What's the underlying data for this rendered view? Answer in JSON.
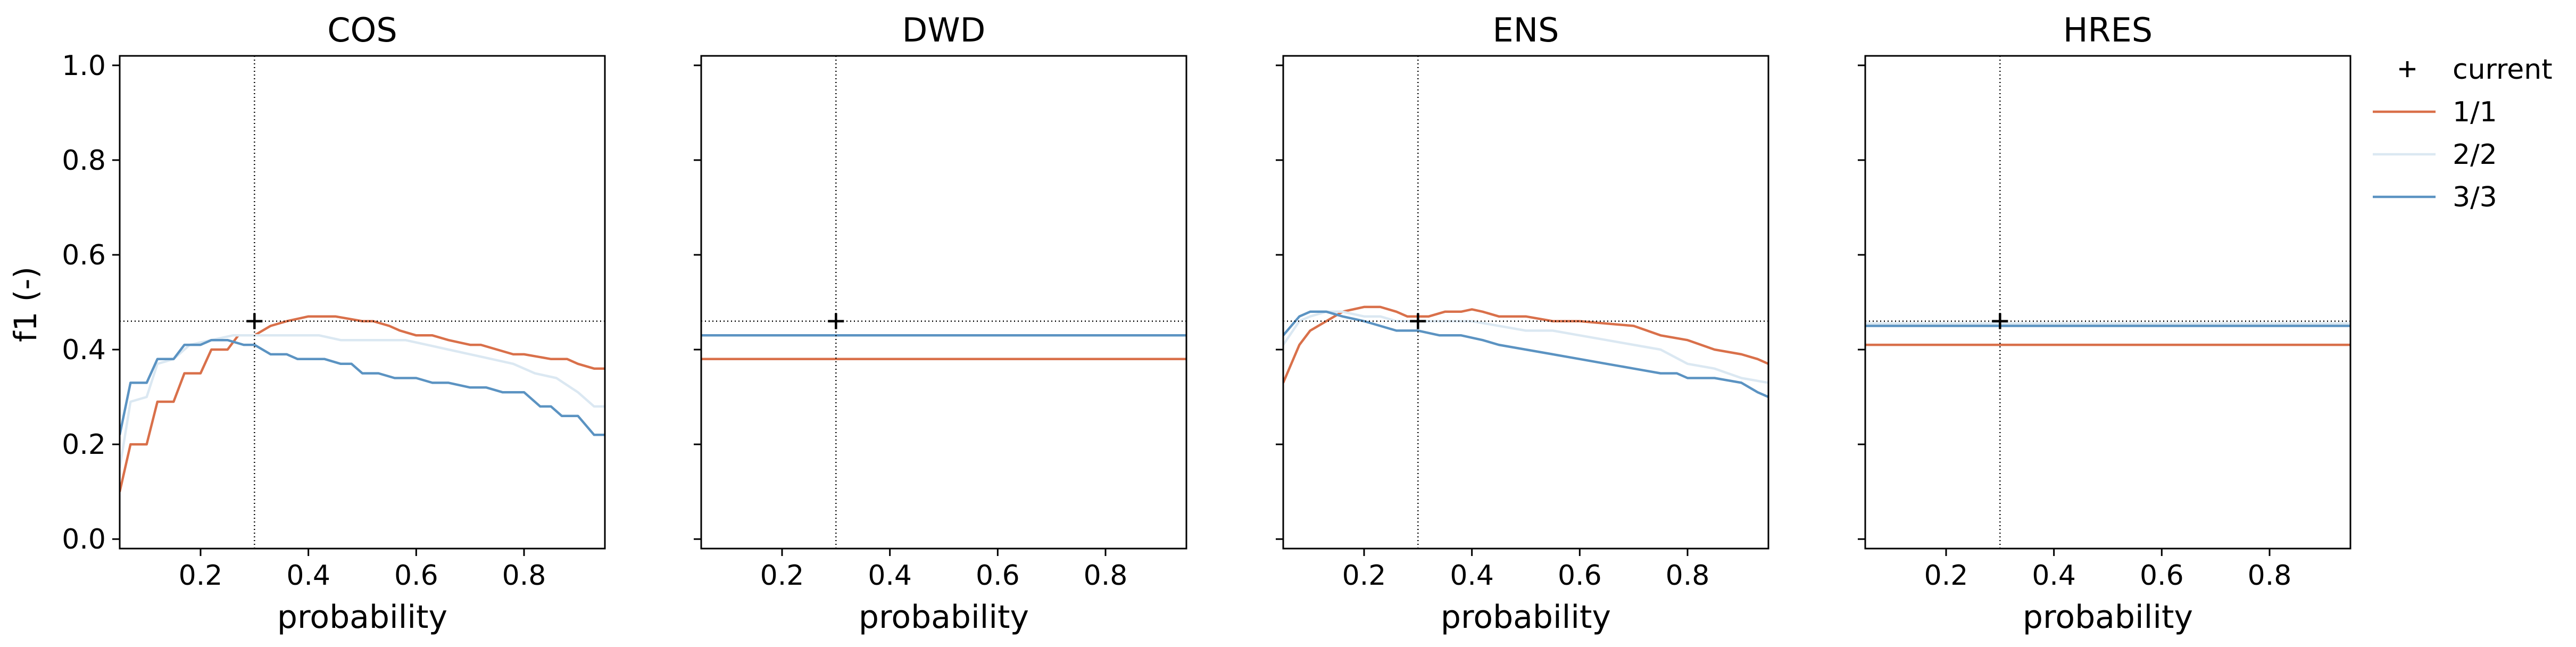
{
  "figure": {
    "ylabel": "f1 (-)",
    "xlabel": "probability"
  },
  "legend": {
    "placement": "right",
    "items": [
      {
        "label": "current",
        "marker": "plus",
        "color": "#000000"
      },
      {
        "label": "1/1",
        "color": "#d9704a"
      },
      {
        "label": "2/2",
        "color": "#dbe8f2"
      },
      {
        "label": "3/3",
        "color": "#5b93c2"
      }
    ]
  },
  "chart_data": [
    {
      "type": "line",
      "title": "COS",
      "xlabel": "probability",
      "ylabel": "f1 (-)",
      "xlim": [
        0.05,
        0.95
      ],
      "ylim": [
        -0.02,
        1.02
      ],
      "xticks": [
        "0.2",
        "0.4",
        "0.6",
        "0.8"
      ],
      "yticks": [
        "0.0",
        "0.2",
        "0.4",
        "0.6",
        "0.8",
        "1.0"
      ],
      "threshold_x": 0.3,
      "current": {
        "x": 0.3,
        "y": 0.46
      },
      "series": [
        {
          "name": "1/1",
          "color": "#d9704a",
          "x": [
            0.05,
            0.07,
            0.1,
            0.12,
            0.15,
            0.17,
            0.2,
            0.22,
            0.25,
            0.27,
            0.3,
            0.33,
            0.36,
            0.38,
            0.4,
            0.45,
            0.5,
            0.52,
            0.55,
            0.57,
            0.6,
            0.63,
            0.66,
            0.7,
            0.72,
            0.75,
            0.78,
            0.8,
            0.85,
            0.88,
            0.9,
            0.93,
            0.95
          ],
          "y": [
            0.1,
            0.2,
            0.2,
            0.29,
            0.29,
            0.35,
            0.35,
            0.4,
            0.4,
            0.43,
            0.43,
            0.45,
            0.46,
            0.465,
            0.47,
            0.47,
            0.46,
            0.46,
            0.45,
            0.44,
            0.43,
            0.43,
            0.42,
            0.41,
            0.41,
            0.4,
            0.39,
            0.39,
            0.38,
            0.38,
            0.37,
            0.36,
            0.36
          ]
        },
        {
          "name": "2/2",
          "color": "#dbe8f2",
          "x": [
            0.05,
            0.07,
            0.1,
            0.12,
            0.15,
            0.18,
            0.22,
            0.26,
            0.3,
            0.34,
            0.38,
            0.42,
            0.46,
            0.5,
            0.54,
            0.58,
            0.62,
            0.66,
            0.7,
            0.74,
            0.78,
            0.82,
            0.86,
            0.9,
            0.93,
            0.95
          ],
          "y": [
            0.15,
            0.29,
            0.3,
            0.37,
            0.38,
            0.41,
            0.42,
            0.43,
            0.43,
            0.43,
            0.43,
            0.43,
            0.42,
            0.42,
            0.42,
            0.42,
            0.41,
            0.4,
            0.39,
            0.38,
            0.37,
            0.35,
            0.34,
            0.31,
            0.28,
            0.28
          ]
        },
        {
          "name": "3/3",
          "color": "#5b93c2",
          "x": [
            0.05,
            0.07,
            0.1,
            0.12,
            0.15,
            0.17,
            0.2,
            0.22,
            0.25,
            0.28,
            0.3,
            0.33,
            0.36,
            0.38,
            0.4,
            0.43,
            0.46,
            0.48,
            0.5,
            0.53,
            0.56,
            0.6,
            0.63,
            0.66,
            0.7,
            0.73,
            0.76,
            0.8,
            0.83,
            0.85,
            0.87,
            0.9,
            0.93,
            0.95
          ],
          "y": [
            0.22,
            0.33,
            0.33,
            0.38,
            0.38,
            0.41,
            0.41,
            0.42,
            0.42,
            0.41,
            0.41,
            0.39,
            0.39,
            0.38,
            0.38,
            0.38,
            0.37,
            0.37,
            0.35,
            0.35,
            0.34,
            0.34,
            0.33,
            0.33,
            0.32,
            0.32,
            0.31,
            0.31,
            0.28,
            0.28,
            0.26,
            0.26,
            0.22,
            0.22
          ]
        }
      ]
    },
    {
      "type": "line",
      "title": "DWD",
      "xlabel": "probability",
      "xlim": [
        0.05,
        0.95
      ],
      "ylim": [
        -0.02,
        1.02
      ],
      "xticks": [
        "0.2",
        "0.4",
        "0.6",
        "0.8"
      ],
      "threshold_x": 0.3,
      "current": {
        "x": 0.3,
        "y": 0.46
      },
      "series": [
        {
          "name": "1/1",
          "color": "#d9704a",
          "x": [
            0.05,
            0.95
          ],
          "y": [
            0.38,
            0.38
          ]
        },
        {
          "name": "2/2",
          "color": "#dbe8f2",
          "x": [
            0.05,
            0.95
          ],
          "y": [
            0.43,
            0.43
          ]
        },
        {
          "name": "3/3",
          "color": "#5b93c2",
          "x": [
            0.05,
            0.95
          ],
          "y": [
            0.43,
            0.43
          ]
        }
      ]
    },
    {
      "type": "line",
      "title": "ENS",
      "xlabel": "probability",
      "xlim": [
        0.05,
        0.95
      ],
      "ylim": [
        -0.02,
        1.02
      ],
      "xticks": [
        "0.2",
        "0.4",
        "0.6",
        "0.8"
      ],
      "threshold_x": 0.3,
      "current": {
        "x": 0.3,
        "y": 0.46
      },
      "series": [
        {
          "name": "1/1",
          "color": "#d9704a",
          "x": [
            0.05,
            0.08,
            0.1,
            0.13,
            0.16,
            0.2,
            0.23,
            0.26,
            0.28,
            0.3,
            0.32,
            0.35,
            0.38,
            0.4,
            0.42,
            0.45,
            0.5,
            0.55,
            0.6,
            0.65,
            0.7,
            0.75,
            0.8,
            0.85,
            0.9,
            0.93,
            0.95
          ],
          "y": [
            0.33,
            0.41,
            0.44,
            0.46,
            0.48,
            0.49,
            0.49,
            0.48,
            0.47,
            0.47,
            0.47,
            0.48,
            0.48,
            0.485,
            0.48,
            0.47,
            0.47,
            0.46,
            0.46,
            0.455,
            0.45,
            0.43,
            0.42,
            0.4,
            0.39,
            0.38,
            0.37
          ]
        },
        {
          "name": "2/2",
          "color": "#dbe8f2",
          "x": [
            0.05,
            0.08,
            0.1,
            0.13,
            0.16,
            0.2,
            0.23,
            0.26,
            0.3,
            0.35,
            0.4,
            0.45,
            0.5,
            0.55,
            0.6,
            0.65,
            0.7,
            0.75,
            0.8,
            0.85,
            0.9,
            0.95
          ],
          "y": [
            0.41,
            0.46,
            0.47,
            0.48,
            0.48,
            0.47,
            0.47,
            0.46,
            0.46,
            0.46,
            0.46,
            0.45,
            0.44,
            0.44,
            0.43,
            0.42,
            0.41,
            0.4,
            0.37,
            0.36,
            0.34,
            0.33
          ]
        },
        {
          "name": "3/3",
          "color": "#5b93c2",
          "x": [
            0.05,
            0.08,
            0.1,
            0.13,
            0.16,
            0.2,
            0.23,
            0.26,
            0.3,
            0.34,
            0.38,
            0.42,
            0.45,
            0.5,
            0.55,
            0.6,
            0.65,
            0.7,
            0.75,
            0.78,
            0.8,
            0.85,
            0.9,
            0.93,
            0.95
          ],
          "y": [
            0.43,
            0.47,
            0.48,
            0.48,
            0.47,
            0.46,
            0.45,
            0.44,
            0.44,
            0.43,
            0.43,
            0.42,
            0.41,
            0.4,
            0.39,
            0.38,
            0.37,
            0.36,
            0.35,
            0.35,
            0.34,
            0.34,
            0.33,
            0.31,
            0.3
          ]
        }
      ]
    },
    {
      "type": "line",
      "title": "HRES",
      "xlabel": "probability",
      "xlim": [
        0.05,
        0.95
      ],
      "ylim": [
        -0.02,
        1.02
      ],
      "xticks": [
        "0.2",
        "0.4",
        "0.6",
        "0.8"
      ],
      "threshold_x": 0.3,
      "current": {
        "x": 0.3,
        "y": 0.46
      },
      "series": [
        {
          "name": "1/1",
          "color": "#d9704a",
          "x": [
            0.05,
            0.95
          ],
          "y": [
            0.41,
            0.41
          ]
        },
        {
          "name": "2/2",
          "color": "#dbe8f2",
          "x": [
            0.05,
            0.95
          ],
          "y": [
            0.455,
            0.455
          ]
        },
        {
          "name": "3/3",
          "color": "#5b93c2",
          "x": [
            0.05,
            0.95
          ],
          "y": [
            0.45,
            0.45
          ]
        }
      ]
    }
  ]
}
